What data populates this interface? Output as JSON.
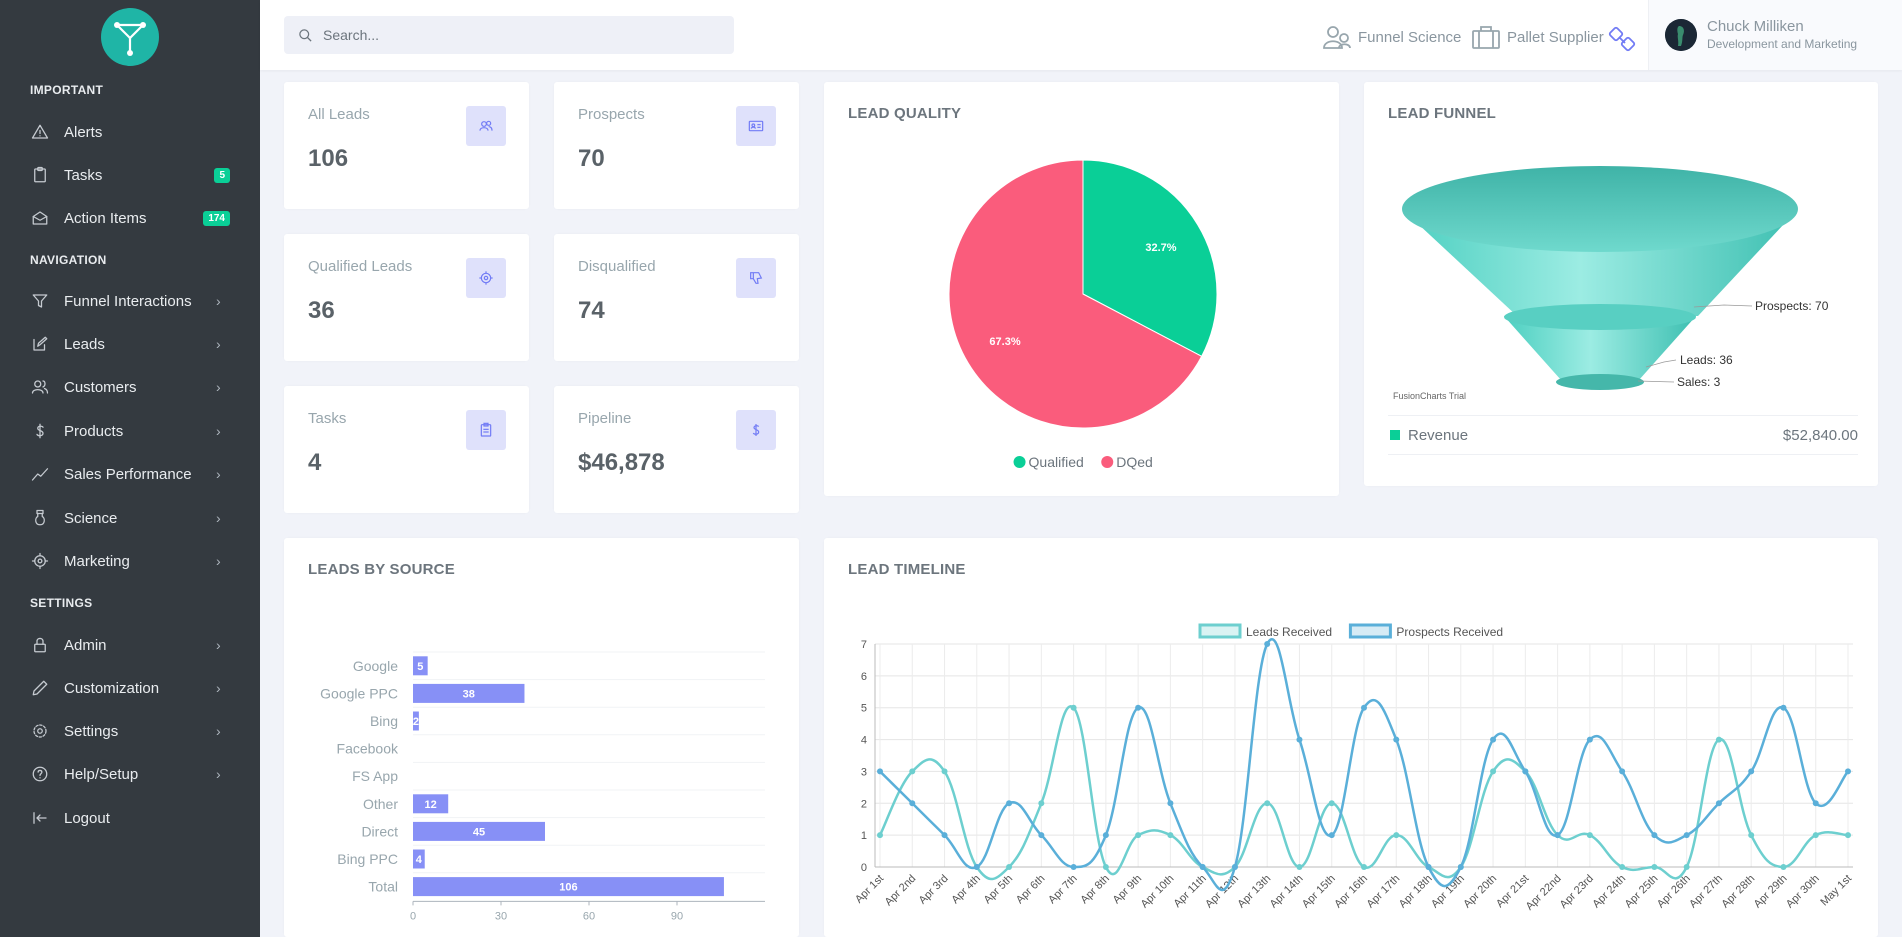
{
  "colors": {
    "accent": "#727cf5",
    "qualified": "#0acf97",
    "dqed": "#fa5c7c",
    "leads_line": "#6dcfcf",
    "prospects_line": "#5aafd9",
    "sidebar_bg": "#343a40",
    "badge": "#0acf97"
  },
  "search": {
    "placeholder": "Search..."
  },
  "topbar": {
    "links": [
      {
        "label": "Funnel Science",
        "icon": "users-icon"
      },
      {
        "label": "Pallet Supplier",
        "icon": "briefcase-icon"
      }
    ],
    "link_icon": "link-icon",
    "user": {
      "name": "Chuck Milliken",
      "role": "Development and Marketing"
    }
  },
  "sidebar": {
    "sections": {
      "important": "IMPORTANT",
      "navigation": "NAVIGATION",
      "settings": "SETTINGS"
    },
    "items": [
      {
        "label": "Alerts",
        "icon": "alert-triangle-icon"
      },
      {
        "label": "Tasks",
        "icon": "clipboard-icon",
        "badge": "5"
      },
      {
        "label": "Action Items",
        "icon": "inbox-icon",
        "badge": "174"
      },
      {
        "label": "Funnel Interactions",
        "icon": "filter-icon"
      },
      {
        "label": "Leads",
        "icon": "edit-icon"
      },
      {
        "label": "Customers",
        "icon": "users-icon"
      },
      {
        "label": "Products",
        "icon": "dollar-icon"
      },
      {
        "label": "Sales Performance",
        "icon": "trending-up-icon"
      },
      {
        "label": "Science",
        "icon": "flask-icon"
      },
      {
        "label": "Marketing",
        "icon": "target-icon"
      },
      {
        "label": "Admin",
        "icon": "lock-icon"
      },
      {
        "label": "Customization",
        "icon": "pen-icon"
      },
      {
        "label": "Settings",
        "icon": "gear-icon"
      },
      {
        "label": "Help/Setup",
        "icon": "help-circle-icon"
      },
      {
        "label": "Logout",
        "icon": "logout-icon"
      }
    ]
  },
  "stats": [
    {
      "title": "All Leads",
      "value": "106",
      "icon": "users-icon"
    },
    {
      "title": "Prospects",
      "value": "70",
      "icon": "id-card-icon"
    },
    {
      "title": "Qualified Leads",
      "value": "36",
      "icon": "target-icon"
    },
    {
      "title": "Disqualified",
      "value": "74",
      "icon": "thumbs-down-icon"
    },
    {
      "title": "Tasks",
      "value": "4",
      "icon": "clipboard-icon"
    },
    {
      "title": "Pipeline",
      "value": "$46,878",
      "icon": "dollar-icon"
    }
  ],
  "lead_quality": {
    "title": "LEAD QUALITY",
    "chart_data": {
      "type": "pie",
      "labels": [
        "Qualified",
        "DQed"
      ],
      "values": [
        32.7,
        67.3
      ],
      "value_labels": [
        "32.7%",
        "67.3%"
      ],
      "legend": "bottom"
    }
  },
  "lead_funnel": {
    "title": "LEAD FUNNEL",
    "chart_data": {
      "type": "funnel",
      "labels": [
        "Prospects: 70",
        "Leads: 36",
        "Sales: 3"
      ],
      "values": [
        70,
        36,
        3
      ]
    },
    "trial_text": "FusionCharts Trial",
    "revenue_label": "Revenue",
    "revenue_value": "$52,840.00"
  },
  "leads_by_source": {
    "title": "LEADS BY SOURCE",
    "chart_data": {
      "type": "bar",
      "orientation": "horizontal",
      "categories": [
        "Google",
        "Google PPC",
        "Bing",
        "Facebook",
        "FS App",
        "Other",
        "Direct",
        "Bing PPC",
        "Total"
      ],
      "values": [
        5,
        38,
        2,
        0,
        0,
        12,
        45,
        4,
        106
      ],
      "xlim": [
        0,
        120
      ],
      "xticks": [
        "0",
        "30",
        "60",
        "90"
      ]
    }
  },
  "lead_timeline": {
    "title": "LEAD TIMELINE",
    "chart_data": {
      "type": "line",
      "x": [
        "Apr 1st",
        "Apr 2nd",
        "Apr 3rd",
        "Apr 4th",
        "Apr 5th",
        "Apr 6th",
        "Apr 7th",
        "Apr 8th",
        "Apr 9th",
        "Apr 10th",
        "Apr 11th",
        "Apr 12th",
        "Apr 13th",
        "Apr 14th",
        "Apr 15th",
        "Apr 16th",
        "Apr 17th",
        "Apr 18th",
        "Apr 19th",
        "Apr 20th",
        "Apr 21st",
        "Apr 22nd",
        "Apr 23rd",
        "Apr 24th",
        "Apr 25th",
        "Apr 26th",
        "Apr 27th",
        "Apr 28th",
        "Apr 29th",
        "Apr 30th",
        "May 1st"
      ],
      "series": [
        {
          "name": "Leads Received",
          "values": [
            1,
            3,
            3,
            0,
            0,
            2,
            5,
            0,
            1,
            1,
            0,
            0,
            2,
            0,
            2,
            0,
            1,
            0,
            0,
            3,
            3,
            1,
            1,
            0,
            0,
            0,
            4,
            1,
            0,
            1,
            1
          ]
        },
        {
          "name": "Prospects Received",
          "values": [
            3,
            2,
            1,
            0,
            2,
            1,
            0,
            1,
            5,
            2,
            0,
            0,
            7,
            4,
            1,
            5,
            4,
            0,
            0,
            4,
            3,
            1,
            4,
            3,
            1,
            1,
            2,
            3,
            5,
            2,
            3
          ]
        }
      ],
      "ylim": [
        0,
        7
      ],
      "yticks": [
        "0",
        "1",
        "2",
        "3",
        "4",
        "5",
        "6",
        "7"
      ],
      "legend": "top",
      "grid": true
    }
  }
}
